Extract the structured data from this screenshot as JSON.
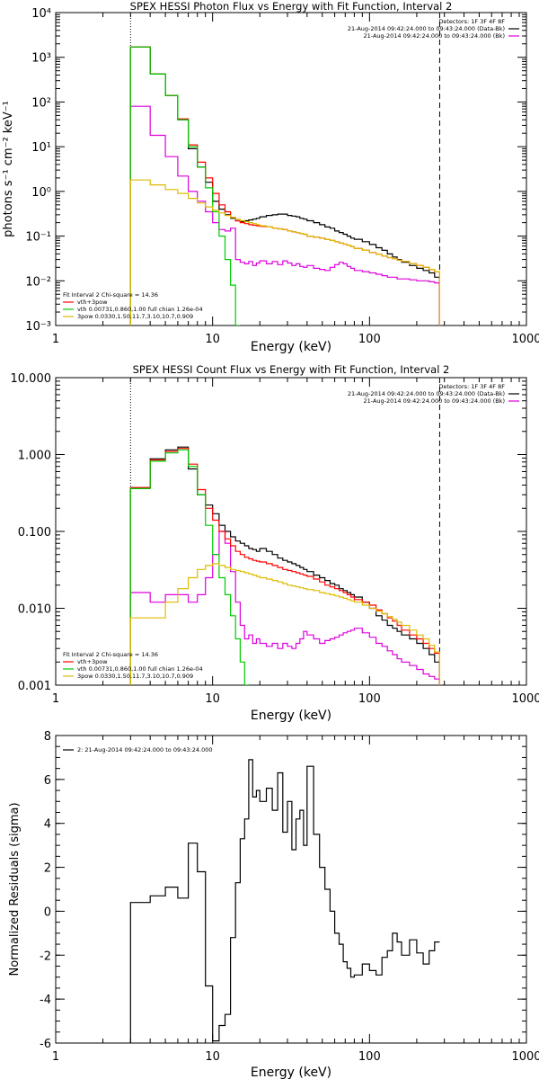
{
  "chart_data": [
    {
      "type": "line",
      "title": "SPEX HESSI Photon Flux vs Energy with Fit Function, Interval 2",
      "xlabel": "Energy (keV)",
      "ylabel": "photons s⁻¹ cm⁻² keV⁻¹",
      "xscale": "log",
      "yscale": "log",
      "xlim": [
        1,
        1000
      ],
      "ylim": [
        0.001,
        10000
      ],
      "x_tick_values": [
        1,
        10,
        100,
        1000
      ],
      "x_ticks": [
        "1",
        "10",
        "100",
        "1000"
      ],
      "y_tick_values": [
        0.001,
        0.01,
        0.1,
        1,
        10,
        100,
        1000,
        10000
      ],
      "y_ticks": [
        "10⁻³",
        "10⁻²",
        "10⁻¹",
        "10⁰",
        "10¹",
        "10²",
        "10³",
        "10⁴"
      ],
      "vlines": [
        {
          "x": 3,
          "style": "dotted"
        },
        {
          "x": 280,
          "style": "dashed"
        }
      ],
      "legend_topright": [
        {
          "text": "Detectors: 1F 3F 4F 8F",
          "color": "#000000",
          "swatch": false
        },
        {
          "text": "21-Aug-2014 09:42:24.000 to 09:43:24.000 (Data-Bk)",
          "color": "#000000",
          "swatch": true
        },
        {
          "text": "21-Aug-2014 09:42:24.000 to 09:43:24.000 (Bk)",
          "color": "#dd00dd",
          "swatch": true
        }
      ],
      "legend_bottomleft": [
        {
          "text": "Fit Interval 2   Chi-square = 14.36",
          "color": "#000000",
          "swatch": false
        },
        {
          "text": "vth+3pow",
          "color": "#ff0000",
          "swatch": true
        },
        {
          "text": "vth 0.00731,0.860,1.00   full chian 1.26e-04",
          "color": "#00cc00",
          "swatch": true
        },
        {
          "text": "3pow 0.0330,1.50,11.7,3.10,10.7,0.909",
          "color": "#ddbb00",
          "swatch": true
        }
      ],
      "x_edges": [
        3,
        4,
        5,
        6,
        7,
        8,
        9,
        10,
        11,
        12,
        13,
        14,
        15,
        16,
        17,
        18,
        19,
        20,
        22,
        24,
        26,
        28,
        30,
        32,
        34,
        36,
        38,
        40,
        44,
        48,
        52,
        56,
        60,
        64,
        68,
        72,
        76,
        80,
        90,
        100,
        110,
        120,
        130,
        140,
        150,
        160,
        180,
        200,
        220,
        240,
        260,
        280
      ],
      "series": [
        {
          "name": "Data-Bk",
          "color": "#000000",
          "values": [
            1700,
            420,
            140,
            40,
            9,
            3.5,
            1.6,
            0.6,
            0.4,
            0.3,
            0.25,
            0.22,
            0.21,
            0.22,
            0.23,
            0.24,
            0.25,
            0.27,
            0.29,
            0.3,
            0.31,
            0.31,
            0.29,
            0.28,
            0.27,
            0.25,
            0.24,
            0.22,
            0.2,
            0.18,
            0.16,
            0.15,
            0.13,
            0.12,
            0.11,
            0.1,
            0.09,
            0.085,
            0.075,
            0.065,
            0.055,
            0.048,
            0.04,
            0.034,
            0.03,
            0.026,
            0.022,
            0.019,
            0.017,
            0.015,
            0.012
          ]
        },
        {
          "name": "Bk",
          "color": "#dd00dd",
          "values": [
            80,
            18,
            6,
            2.2,
            1,
            0.6,
            0.35,
            0.2,
            0.14,
            0.13,
            0.15,
            0.03,
            0.026,
            0.024,
            0.027,
            0.022,
            0.025,
            0.028,
            0.024,
            0.027,
            0.023,
            0.028,
            0.025,
            0.022,
            0.024,
            0.021,
            0.02,
            0.022,
            0.019,
            0.018,
            0.017,
            0.02,
            0.023,
            0.026,
            0.024,
            0.021,
            0.019,
            0.017,
            0.016,
            0.015,
            0.014,
            0.013,
            0.012,
            0.012,
            0.011,
            0.011,
            0.0105,
            0.01,
            0.01,
            0.0095,
            0.009
          ]
        },
        {
          "name": "vth+3pow",
          "color": "#ff0000",
          "values": [
            1700,
            420,
            140,
            42,
            11,
            4.5,
            2,
            0.9,
            0.5,
            0.35,
            0.26,
            0.22,
            0.2,
            0.19,
            0.18,
            0.175,
            0.17,
            0.165,
            0.16,
            0.15,
            0.145,
            0.14,
            0.13,
            0.125,
            0.12,
            0.115,
            0.11,
            0.1,
            0.095,
            0.09,
            0.085,
            0.08,
            0.075,
            0.07,
            0.066,
            0.062,
            0.058,
            0.053,
            0.048,
            0.043,
            0.039,
            0.036,
            0.033,
            0.031,
            0.029,
            0.027,
            0.024,
            0.022,
            0.02,
            0.018,
            0.016
          ]
        },
        {
          "name": "vth",
          "color": "#00cc00",
          "values": [
            1700,
            420,
            140,
            40,
            10,
            3.5,
            1.2,
            0.35,
            0.1,
            0.03,
            0.008,
            0.001
          ]
        },
        {
          "name": "3pow",
          "color": "#ddbb00",
          "values": [
            1.8,
            1.4,
            1.1,
            0.9,
            0.7,
            0.55,
            0.45,
            0.38,
            0.33,
            0.29,
            0.26,
            0.24,
            0.22,
            0.21,
            0.2,
            0.19,
            0.18,
            0.17,
            0.16,
            0.15,
            0.145,
            0.14,
            0.13,
            0.125,
            0.12,
            0.115,
            0.11,
            0.1,
            0.095,
            0.09,
            0.085,
            0.08,
            0.075,
            0.07,
            0.066,
            0.062,
            0.058,
            0.053,
            0.048,
            0.043,
            0.039,
            0.036,
            0.033,
            0.031,
            0.029,
            0.027,
            0.024,
            0.022,
            0.02,
            0.018,
            0.016
          ]
        }
      ]
    },
    {
      "type": "line",
      "title": "SPEX HESSI Count Flux vs Energy with Fit Function, Interval 2",
      "xlabel": "Energy (keV)",
      "ylabel": "",
      "xscale": "log",
      "yscale": "log",
      "xlim": [
        1,
        1000
      ],
      "ylim": [
        0.001,
        10
      ],
      "x_tick_values": [
        1,
        10,
        100,
        1000
      ],
      "x_ticks": [
        "1",
        "10",
        "100",
        "1000"
      ],
      "y_tick_values": [
        0.001,
        0.01,
        0.1,
        1,
        10
      ],
      "y_ticks": [
        "0.001",
        "0.010",
        "0.100",
        "1.000",
        "10.000"
      ],
      "vlines": [
        {
          "x": 3,
          "style": "dotted"
        },
        {
          "x": 280,
          "style": "dashed"
        }
      ],
      "legend_topright": [
        {
          "text": "Detectors: 1F 3F 4F 8F",
          "color": "#000000",
          "swatch": false
        },
        {
          "text": "21-Aug-2014 09:42:24.000 to 09:43:24.000 (Data-Bk)",
          "color": "#000000",
          "swatch": true
        },
        {
          "text": "21-Aug-2014 09:42:24.000 to 09:43:24.000 (Bk)",
          "color": "#dd00dd",
          "swatch": true
        }
      ],
      "legend_bottomleft": [
        {
          "text": "Fit Interval 2   Chi-square = 14.36",
          "color": "#000000",
          "swatch": false
        },
        {
          "text": "vth+3pow",
          "color": "#ff0000",
          "swatch": true
        },
        {
          "text": "vth 0.00731,0.860,1.00   full chian 1.26e-04",
          "color": "#00cc00",
          "swatch": true
        },
        {
          "text": "3pow 0.0330,1.50,11.7,3.10,10.7,0.909",
          "color": "#ddbb00",
          "swatch": true
        }
      ],
      "x_edges": [
        3,
        4,
        5,
        6,
        7,
        8,
        9,
        10,
        11,
        12,
        13,
        14,
        15,
        16,
        17,
        18,
        19,
        20,
        22,
        24,
        26,
        28,
        30,
        32,
        34,
        36,
        38,
        40,
        44,
        48,
        52,
        56,
        60,
        64,
        68,
        72,
        76,
        80,
        90,
        100,
        110,
        120,
        130,
        140,
        150,
        160,
        180,
        200,
        220,
        240,
        260,
        280
      ],
      "series": [
        {
          "name": "Data-Bk",
          "color": "#000000",
          "values": [
            0.37,
            0.88,
            1.15,
            1.25,
            0.65,
            0.3,
            0.22,
            0.17,
            0.12,
            0.1,
            0.085,
            0.075,
            0.07,
            0.065,
            0.06,
            0.058,
            0.055,
            0.06,
            0.055,
            0.05,
            0.045,
            0.042,
            0.04,
            0.038,
            0.036,
            0.034,
            0.032,
            0.03,
            0.027,
            0.025,
            0.023,
            0.021,
            0.02,
            0.018,
            0.017,
            0.016,
            0.015,
            0.014,
            0.012,
            0.01,
            0.008,
            0.007,
            0.006,
            0.0055,
            0.005,
            0.0045,
            0.004,
            0.0035,
            0.003,
            0.0025,
            0.002
          ]
        },
        {
          "name": "Bk",
          "color": "#dd00dd",
          "values": [
            0.016,
            0.012,
            0.015,
            0.015,
            0.012,
            0.015,
            0.025,
            0.05,
            0.1,
            0.07,
            0.03,
            0.012,
            0.006,
            0.004,
            0.0045,
            0.0035,
            0.004,
            0.0035,
            0.0032,
            0.0035,
            0.003,
            0.0035,
            0.0032,
            0.003,
            0.0035,
            0.004,
            0.005,
            0.0045,
            0.004,
            0.0035,
            0.0038,
            0.004,
            0.0042,
            0.0045,
            0.0048,
            0.005,
            0.0052,
            0.0055,
            0.0048,
            0.0042,
            0.0035,
            0.0032,
            0.0028,
            0.0025,
            0.0022,
            0.002,
            0.0018,
            0.0016,
            0.0014,
            0.0013,
            0.0012
          ]
        },
        {
          "name": "vth+3pow",
          "color": "#ff0000",
          "values": [
            0.37,
            0.85,
            1.1,
            1.2,
            0.75,
            0.35,
            0.2,
            0.14,
            0.1,
            0.08,
            0.065,
            0.055,
            0.05,
            0.046,
            0.044,
            0.042,
            0.041,
            0.04,
            0.038,
            0.036,
            0.034,
            0.032,
            0.031,
            0.03,
            0.029,
            0.028,
            0.027,
            0.026,
            0.024,
            0.022,
            0.02,
            0.019,
            0.018,
            0.017,
            0.016,
            0.015,
            0.014,
            0.013,
            0.012,
            0.011,
            0.0095,
            0.0085,
            0.0075,
            0.0068,
            0.006,
            0.0052,
            0.0045,
            0.004,
            0.0035,
            0.003,
            0.0026
          ]
        },
        {
          "name": "vth",
          "color": "#00cc00",
          "values": [
            0.36,
            0.82,
            1.05,
            1.15,
            0.7,
            0.3,
            0.12,
            0.05,
            0.025,
            0.015,
            0.008,
            0.004,
            0.002,
            0.001
          ]
        },
        {
          "name": "3pow",
          "color": "#ddbb00",
          "values": [
            0.0075,
            0.0075,
            0.012,
            0.018,
            0.025,
            0.032,
            0.036,
            0.038,
            0.036,
            0.034,
            0.032,
            0.031,
            0.03,
            0.029,
            0.028,
            0.027,
            0.026,
            0.025,
            0.024,
            0.023,
            0.022,
            0.021,
            0.02,
            0.0195,
            0.019,
            0.0185,
            0.018,
            0.0175,
            0.017,
            0.016,
            0.0155,
            0.015,
            0.0145,
            0.014,
            0.0135,
            0.013,
            0.0125,
            0.012,
            0.011,
            0.01,
            0.0092,
            0.0085,
            0.0078,
            0.0072,
            0.0066,
            0.006,
            0.0052,
            0.0045,
            0.004,
            0.0033,
            0.0027
          ]
        }
      ]
    },
    {
      "type": "line",
      "title": "",
      "xlabel": "Energy (keV)",
      "ylabel": "Normalized Residuals (sigma)",
      "xscale": "log",
      "yscale": "linear",
      "xlim": [
        1,
        1000
      ],
      "ylim": [
        -6,
        8
      ],
      "x_tick_values": [
        1,
        10,
        100,
        1000
      ],
      "x_ticks": [
        "1",
        "10",
        "100",
        "1000"
      ],
      "y_tick_values": [
        -6,
        -4,
        -2,
        0,
        2,
        4,
        6,
        8
      ],
      "y_ticks": [
        "-6",
        "-4",
        "-2",
        "0",
        "2",
        "4",
        "6",
        "8"
      ],
      "vlines": [],
      "legend_topright": [],
      "legend_bottomleft": [],
      "legend_topleft": [
        {
          "text": "2: 21-Aug-2014 09:42:24.000 to 09:43:24.000",
          "color": "#000000",
          "swatch": true
        }
      ],
      "x_edges": [
        3,
        4,
        5,
        6,
        7,
        8,
        9,
        10,
        11,
        12,
        13,
        14,
        15,
        16,
        17,
        18,
        19,
        20,
        22,
        24,
        26,
        28,
        30,
        32,
        34,
        36,
        38,
        40,
        44,
        48,
        52,
        56,
        60,
        64,
        68,
        72,
        76,
        80,
        90,
        100,
        110,
        120,
        130,
        140,
        150,
        160,
        180,
        200,
        220,
        240,
        260,
        280
      ],
      "series": [
        {
          "name": "",
          "color": "#000000",
          "values": [
            0.4,
            0.7,
            1.1,
            0.6,
            3.1,
            1.8,
            -3.4,
            -5.9,
            -5.2,
            -4.7,
            -1.2,
            1.3,
            3.3,
            4.2,
            6.9,
            5.2,
            5.5,
            5.0,
            5.6,
            4.6,
            6.3,
            3.6,
            5.0,
            2.8,
            4.2,
            4.6,
            3.0,
            6.6,
            3.5,
            2.0,
            1.0,
            0.0,
            -1.0,
            -1.5,
            -2.3,
            -2.6,
            -3.0,
            -2.9,
            -2.4,
            -2.7,
            -2.9,
            -2.1,
            -1.8,
            -1.0,
            -1.4,
            -2.0,
            -1.3,
            -1.9,
            -2.4,
            -1.8,
            -1.4
          ]
        }
      ]
    }
  ]
}
